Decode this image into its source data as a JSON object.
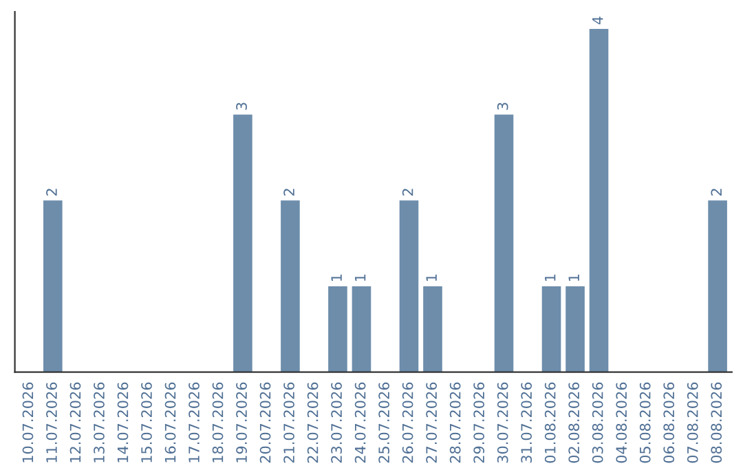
{
  "chart_data": {
    "type": "bar",
    "categories": [
      "10.07.2026",
      "11.07.2026",
      "12.07.2026",
      "13.07.2026",
      "14.07.2026",
      "15.07.2026",
      "16.07.2026",
      "17.07.2026",
      "18.07.2026",
      "19.07.2026",
      "20.07.2026",
      "21.07.2026",
      "22.07.2026",
      "23.07.2026",
      "24.07.2026",
      "25.07.2026",
      "26.07.2026",
      "27.07.2026",
      "28.07.2026",
      "29.07.2026",
      "30.07.2026",
      "31.07.2026",
      "01.08.2026",
      "02.08.2026",
      "03.08.2026",
      "04.08.2026",
      "05.08.2026",
      "06.08.2026",
      "07.08.2026",
      "08.08.2026"
    ],
    "values": [
      0,
      2,
      0,
      0,
      0,
      0,
      0,
      0,
      0,
      3,
      0,
      2,
      0,
      1,
      1,
      0,
      2,
      1,
      0,
      0,
      3,
      0,
      1,
      1,
      4,
      0,
      0,
      0,
      0,
      2
    ],
    "value_labels": [
      null,
      "2",
      null,
      null,
      null,
      null,
      null,
      null,
      null,
      "3",
      null,
      "2",
      null,
      "1",
      "1",
      null,
      "2",
      "1",
      null,
      null,
      "3",
      null,
      "1",
      "1",
      "4",
      null,
      null,
      null,
      null,
      "2"
    ],
    "color": "#6d8dab",
    "grid": false,
    "legend": false,
    "tick_labels": "x"
  }
}
